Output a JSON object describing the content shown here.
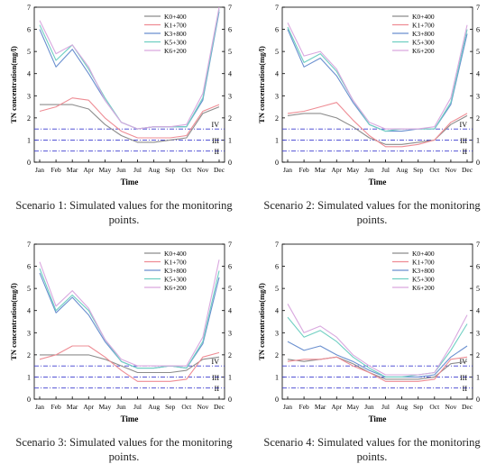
{
  "colors": {
    "K0+400": "#8c8c8c",
    "K1+700": "#ee8c94",
    "K3+800": "#6a8fcf",
    "K5+300": "#6fcfc2",
    "K6+200": "#d9a8df",
    "threshold_line": "#3b3bcf"
  },
  "chart_data": [
    {
      "type": "line",
      "caption": "Scenario 1: Simulated values for the monitoring points.",
      "xlabel": "Time",
      "ylabel": "TN concentration(mg/l)",
      "x": [
        "Jan",
        "Feb",
        "Mar",
        "Apr",
        "May",
        "Jun",
        "Jul",
        "Aug",
        "Sep",
        "Oct",
        "Nov",
        "Dec"
      ],
      "ylim": [
        0,
        7
      ],
      "yticks": [
        0,
        1,
        2,
        3,
        4,
        5,
        6,
        7
      ],
      "grid": false,
      "legend": "top-right",
      "thresholds": [
        {
          "label": "IV",
          "value": 1.5
        },
        {
          "label": "III",
          "value": 1.0
        },
        {
          "label": "II",
          "value": 0.5
        }
      ],
      "series": [
        {
          "name": "K0+400",
          "values": [
            2.6,
            2.6,
            2.6,
            2.4,
            1.7,
            1.2,
            0.9,
            0.9,
            1.0,
            1.1,
            2.2,
            2.5
          ]
        },
        {
          "name": "K1+700",
          "values": [
            2.3,
            2.5,
            2.9,
            2.8,
            2.0,
            1.4,
            1.1,
            1.1,
            1.1,
            1.2,
            2.3,
            2.6
          ]
        },
        {
          "name": "K3+800",
          "values": [
            6.0,
            4.3,
            5.1,
            4.0,
            2.8,
            1.8,
            1.5,
            1.6,
            1.6,
            1.6,
            2.8,
            6.8
          ]
        },
        {
          "name": "K5+300",
          "values": [
            6.2,
            4.6,
            5.3,
            4.2,
            2.9,
            1.8,
            1.5,
            1.6,
            1.6,
            1.6,
            2.9,
            6.9
          ]
        },
        {
          "name": "K6+200",
          "values": [
            6.4,
            4.9,
            5.3,
            4.3,
            2.8,
            1.8,
            1.5,
            1.6,
            1.6,
            1.7,
            3.1,
            7.0
          ]
        }
      ]
    },
    {
      "type": "line",
      "caption": "Scenario 2: Simulated values for the monitoring points.",
      "xlabel": "Time",
      "ylabel": "TN concentration(mg/l)",
      "x": [
        "Jan",
        "Feb",
        "Mar",
        "Apr",
        "May",
        "Jun",
        "Jul",
        "Aug",
        "Sep",
        "Oct",
        "Nov",
        "Dec"
      ],
      "ylim": [
        0,
        7
      ],
      "yticks": [
        0,
        1,
        2,
        3,
        4,
        5,
        6,
        7
      ],
      "grid": false,
      "legend": "top-right",
      "thresholds": [
        {
          "label": "IV",
          "value": 1.5
        },
        {
          "label": "III",
          "value": 1.0
        },
        {
          "label": "II",
          "value": 0.5
        }
      ],
      "series": [
        {
          "name": "K0+400",
          "values": [
            2.1,
            2.2,
            2.2,
            2.0,
            1.6,
            1.1,
            0.8,
            0.8,
            0.9,
            1.0,
            1.7,
            2.1
          ]
        },
        {
          "name": "K1+700",
          "values": [
            2.2,
            2.3,
            2.5,
            2.7,
            1.9,
            1.2,
            0.7,
            0.7,
            0.8,
            1.0,
            1.8,
            2.2
          ]
        },
        {
          "name": "K3+800",
          "values": [
            6.0,
            4.3,
            4.7,
            3.9,
            2.7,
            1.7,
            1.4,
            1.4,
            1.5,
            1.5,
            2.6,
            5.8
          ]
        },
        {
          "name": "K5+300",
          "values": [
            6.1,
            4.5,
            4.9,
            4.1,
            2.8,
            1.7,
            1.4,
            1.5,
            1.5,
            1.5,
            2.7,
            6.0
          ]
        },
        {
          "name": "K6+200",
          "values": [
            6.3,
            4.8,
            5.0,
            4.2,
            2.8,
            1.8,
            1.5,
            1.5,
            1.5,
            1.6,
            2.9,
            6.2
          ]
        }
      ]
    },
    {
      "type": "line",
      "caption": "Scenario 3: Simulated values for the monitoring points.",
      "xlabel": "Time",
      "ylabel": "TN concentration(mg/l)",
      "x": [
        "Jan",
        "Feb",
        "Mar",
        "Apr",
        "May",
        "Jun",
        "Jul",
        "Aug",
        "Sep",
        "Oct",
        "Nov",
        "Dec"
      ],
      "ylim": [
        0,
        7
      ],
      "yticks": [
        0,
        1,
        2,
        3,
        4,
        5,
        6,
        7
      ],
      "grid": false,
      "legend": "top-right",
      "thresholds": [
        {
          "label": "IV",
          "value": 1.5
        },
        {
          "label": "III",
          "value": 1.0
        },
        {
          "label": "II",
          "value": 0.5
        }
      ],
      "series": [
        {
          "name": "K0+400",
          "values": [
            2.0,
            2.0,
            2.0,
            2.0,
            1.8,
            1.5,
            1.2,
            1.2,
            1.2,
            1.3,
            1.8,
            1.9
          ]
        },
        {
          "name": "K1+700",
          "values": [
            1.8,
            2.0,
            2.4,
            2.4,
            1.9,
            1.3,
            0.8,
            0.8,
            0.8,
            0.9,
            1.9,
            2.1
          ]
        },
        {
          "name": "K3+800",
          "values": [
            5.7,
            3.9,
            4.6,
            3.8,
            2.6,
            1.7,
            1.4,
            1.4,
            1.5,
            1.4,
            2.5,
            5.5
          ]
        },
        {
          "name": "K5+300",
          "values": [
            5.9,
            4.0,
            4.7,
            4.0,
            2.7,
            1.7,
            1.4,
            1.4,
            1.5,
            1.4,
            2.6,
            5.8
          ]
        },
        {
          "name": "K6+200",
          "values": [
            6.2,
            4.2,
            4.9,
            4.1,
            2.7,
            1.8,
            1.5,
            1.5,
            1.5,
            1.5,
            2.8,
            6.3
          ]
        }
      ]
    },
    {
      "type": "line",
      "caption": "Scenario 4: Simulated values for the monitoring points.",
      "xlabel": "Time",
      "ylabel": "TN concentration(mg/l)",
      "x": [
        "Jan",
        "Feb",
        "Mar",
        "Apr",
        "May",
        "Jun",
        "Jul",
        "Aug",
        "Sep",
        "Oct",
        "Nov",
        "Dec"
      ],
      "ylim": [
        0,
        7
      ],
      "yticks": [
        0,
        1,
        2,
        3,
        4,
        5,
        6,
        7
      ],
      "grid": false,
      "legend": "top-right",
      "thresholds": [
        {
          "label": "IV",
          "value": 1.5
        },
        {
          "label": "III",
          "value": 1.0
        },
        {
          "label": "II",
          "value": 0.5
        }
      ],
      "series": [
        {
          "name": "K0+400",
          "values": [
            1.8,
            1.7,
            1.8,
            1.9,
            1.6,
            1.2,
            0.9,
            0.9,
            0.9,
            1.0,
            1.6,
            1.7
          ]
        },
        {
          "name": "K1+700",
          "values": [
            1.7,
            1.8,
            1.8,
            1.9,
            1.5,
            1.2,
            0.8,
            0.8,
            0.8,
            0.9,
            1.8,
            1.9
          ]
        },
        {
          "name": "K3+800",
          "values": [
            2.6,
            2.2,
            2.4,
            2.0,
            1.7,
            1.3,
            1.0,
            1.0,
            1.0,
            1.1,
            1.9,
            2.4
          ]
        },
        {
          "name": "K5+300",
          "values": [
            3.7,
            2.8,
            3.1,
            2.6,
            1.9,
            1.4,
            1.0,
            1.0,
            1.1,
            1.2,
            2.2,
            3.4
          ]
        },
        {
          "name": "K6+200",
          "values": [
            4.3,
            3.0,
            3.3,
            2.8,
            2.0,
            1.5,
            1.1,
            1.1,
            1.1,
            1.2,
            2.4,
            3.8
          ]
        }
      ]
    }
  ]
}
